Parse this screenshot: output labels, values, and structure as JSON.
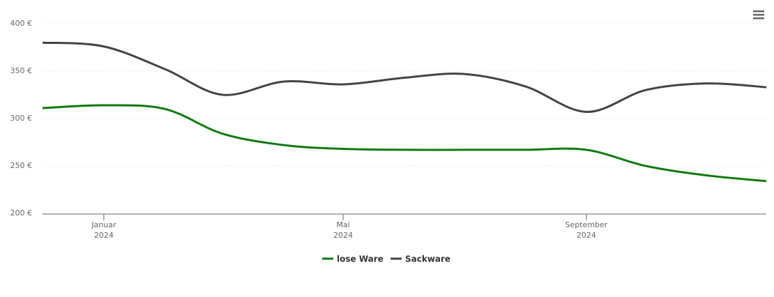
{
  "chart_data": {
    "type": "line",
    "x": [
      "2023-12",
      "2024-01",
      "2024-02",
      "2024-03",
      "2024-04",
      "2024-05",
      "2024-06",
      "2024-07",
      "2024-08",
      "2024-09",
      "2024-10",
      "2024-11",
      "2024-12"
    ],
    "series": [
      {
        "name": "lose Ware",
        "color": "#0f7a0f",
        "values": [
          311,
          314,
          310,
          284,
          272,
          268,
          267,
          267,
          267,
          267,
          250,
          240,
          234
        ]
      },
      {
        "name": "Sackware",
        "color": "#434348",
        "values": [
          380,
          376,
          352,
          325,
          339,
          336,
          343,
          347,
          334,
          307,
          330,
          337,
          333
        ]
      }
    ],
    "xlim": [
      "2023-12",
      "2024-12"
    ],
    "xticks": [
      {
        "value": "2024-01",
        "label": [
          "Januar",
          "2024"
        ]
      },
      {
        "value": "2024-05",
        "label": [
          "Mai",
          "2024"
        ]
      },
      {
        "value": "2024-09",
        "label": [
          "September",
          "2024"
        ]
      }
    ],
    "ylim": [
      200,
      400
    ],
    "yticks": [
      {
        "value": 200,
        "label": "200 €"
      },
      {
        "value": 250,
        "label": "250 €"
      },
      {
        "value": 300,
        "label": "300 €"
      },
      {
        "value": 350,
        "label": "350 €"
      },
      {
        "value": 400,
        "label": "400 €"
      }
    ],
    "grid": true,
    "legend": "bottom"
  }
}
